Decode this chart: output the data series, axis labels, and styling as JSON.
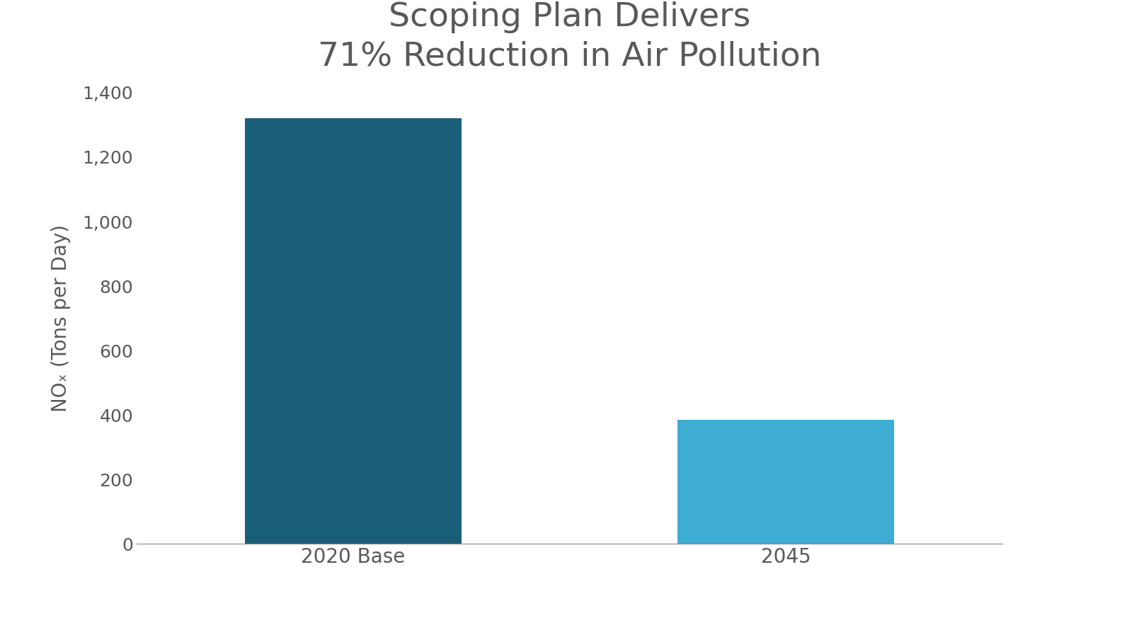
{
  "title_line1": "Scoping Plan Delivers",
  "title_line2": "71% Reduction in Air Pollution",
  "categories": [
    "2020 Base",
    "2045"
  ],
  "values": [
    1320,
    385
  ],
  "bar_colors": [
    "#1a5f7a",
    "#3dadd4"
  ],
  "ylabel": "NOₓ (Tons per Day)",
  "ylim": [
    0,
    1400
  ],
  "yticks": [
    0,
    200,
    400,
    600,
    800,
    1000,
    1200,
    1400
  ],
  "ytick_labels": [
    "0",
    "200",
    "400",
    "600",
    "800",
    "1,000",
    "1,200",
    "1,400"
  ],
  "background_color": "#ffffff",
  "title_color": "#595959",
  "axis_color": "#888888",
  "tick_color": "#595959",
  "title_fontsize": 34,
  "label_fontsize": 20,
  "tick_fontsize": 18,
  "bar_width": 0.25,
  "x_positions": [
    0.25,
    0.75
  ],
  "xlim": [
    0.0,
    1.0
  ]
}
